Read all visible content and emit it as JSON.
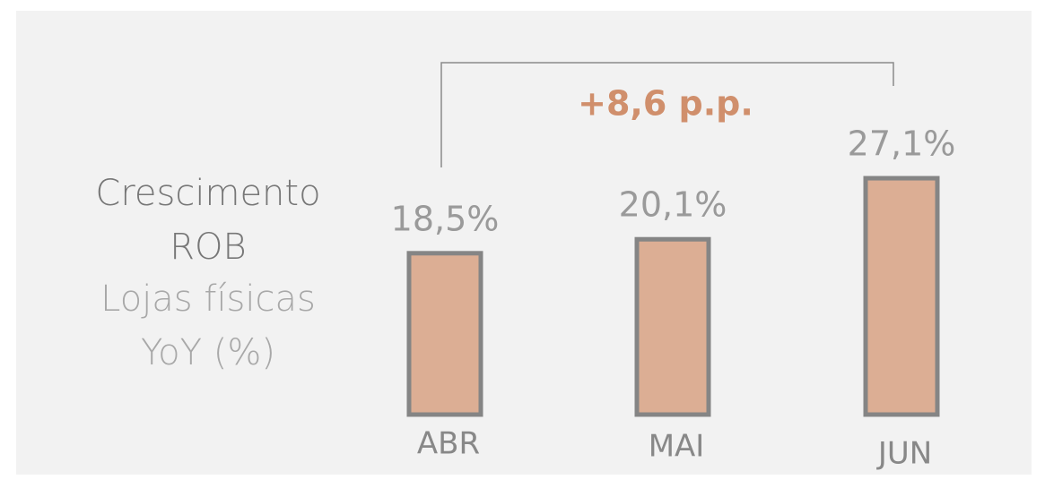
{
  "chart_data": {
    "type": "bar",
    "title": "Crescimento ROB",
    "subtitle": "Lojas físicas YoY (%)",
    "annotation": "+8,6 p.p.",
    "categories": [
      "ABR",
      "MAI",
      "JUN"
    ],
    "values": [
      18.5,
      20.1,
      27.1
    ],
    "value_labels": [
      "18,5%",
      "20,1%",
      "27,1%"
    ],
    "color": "#dcae94"
  }
}
